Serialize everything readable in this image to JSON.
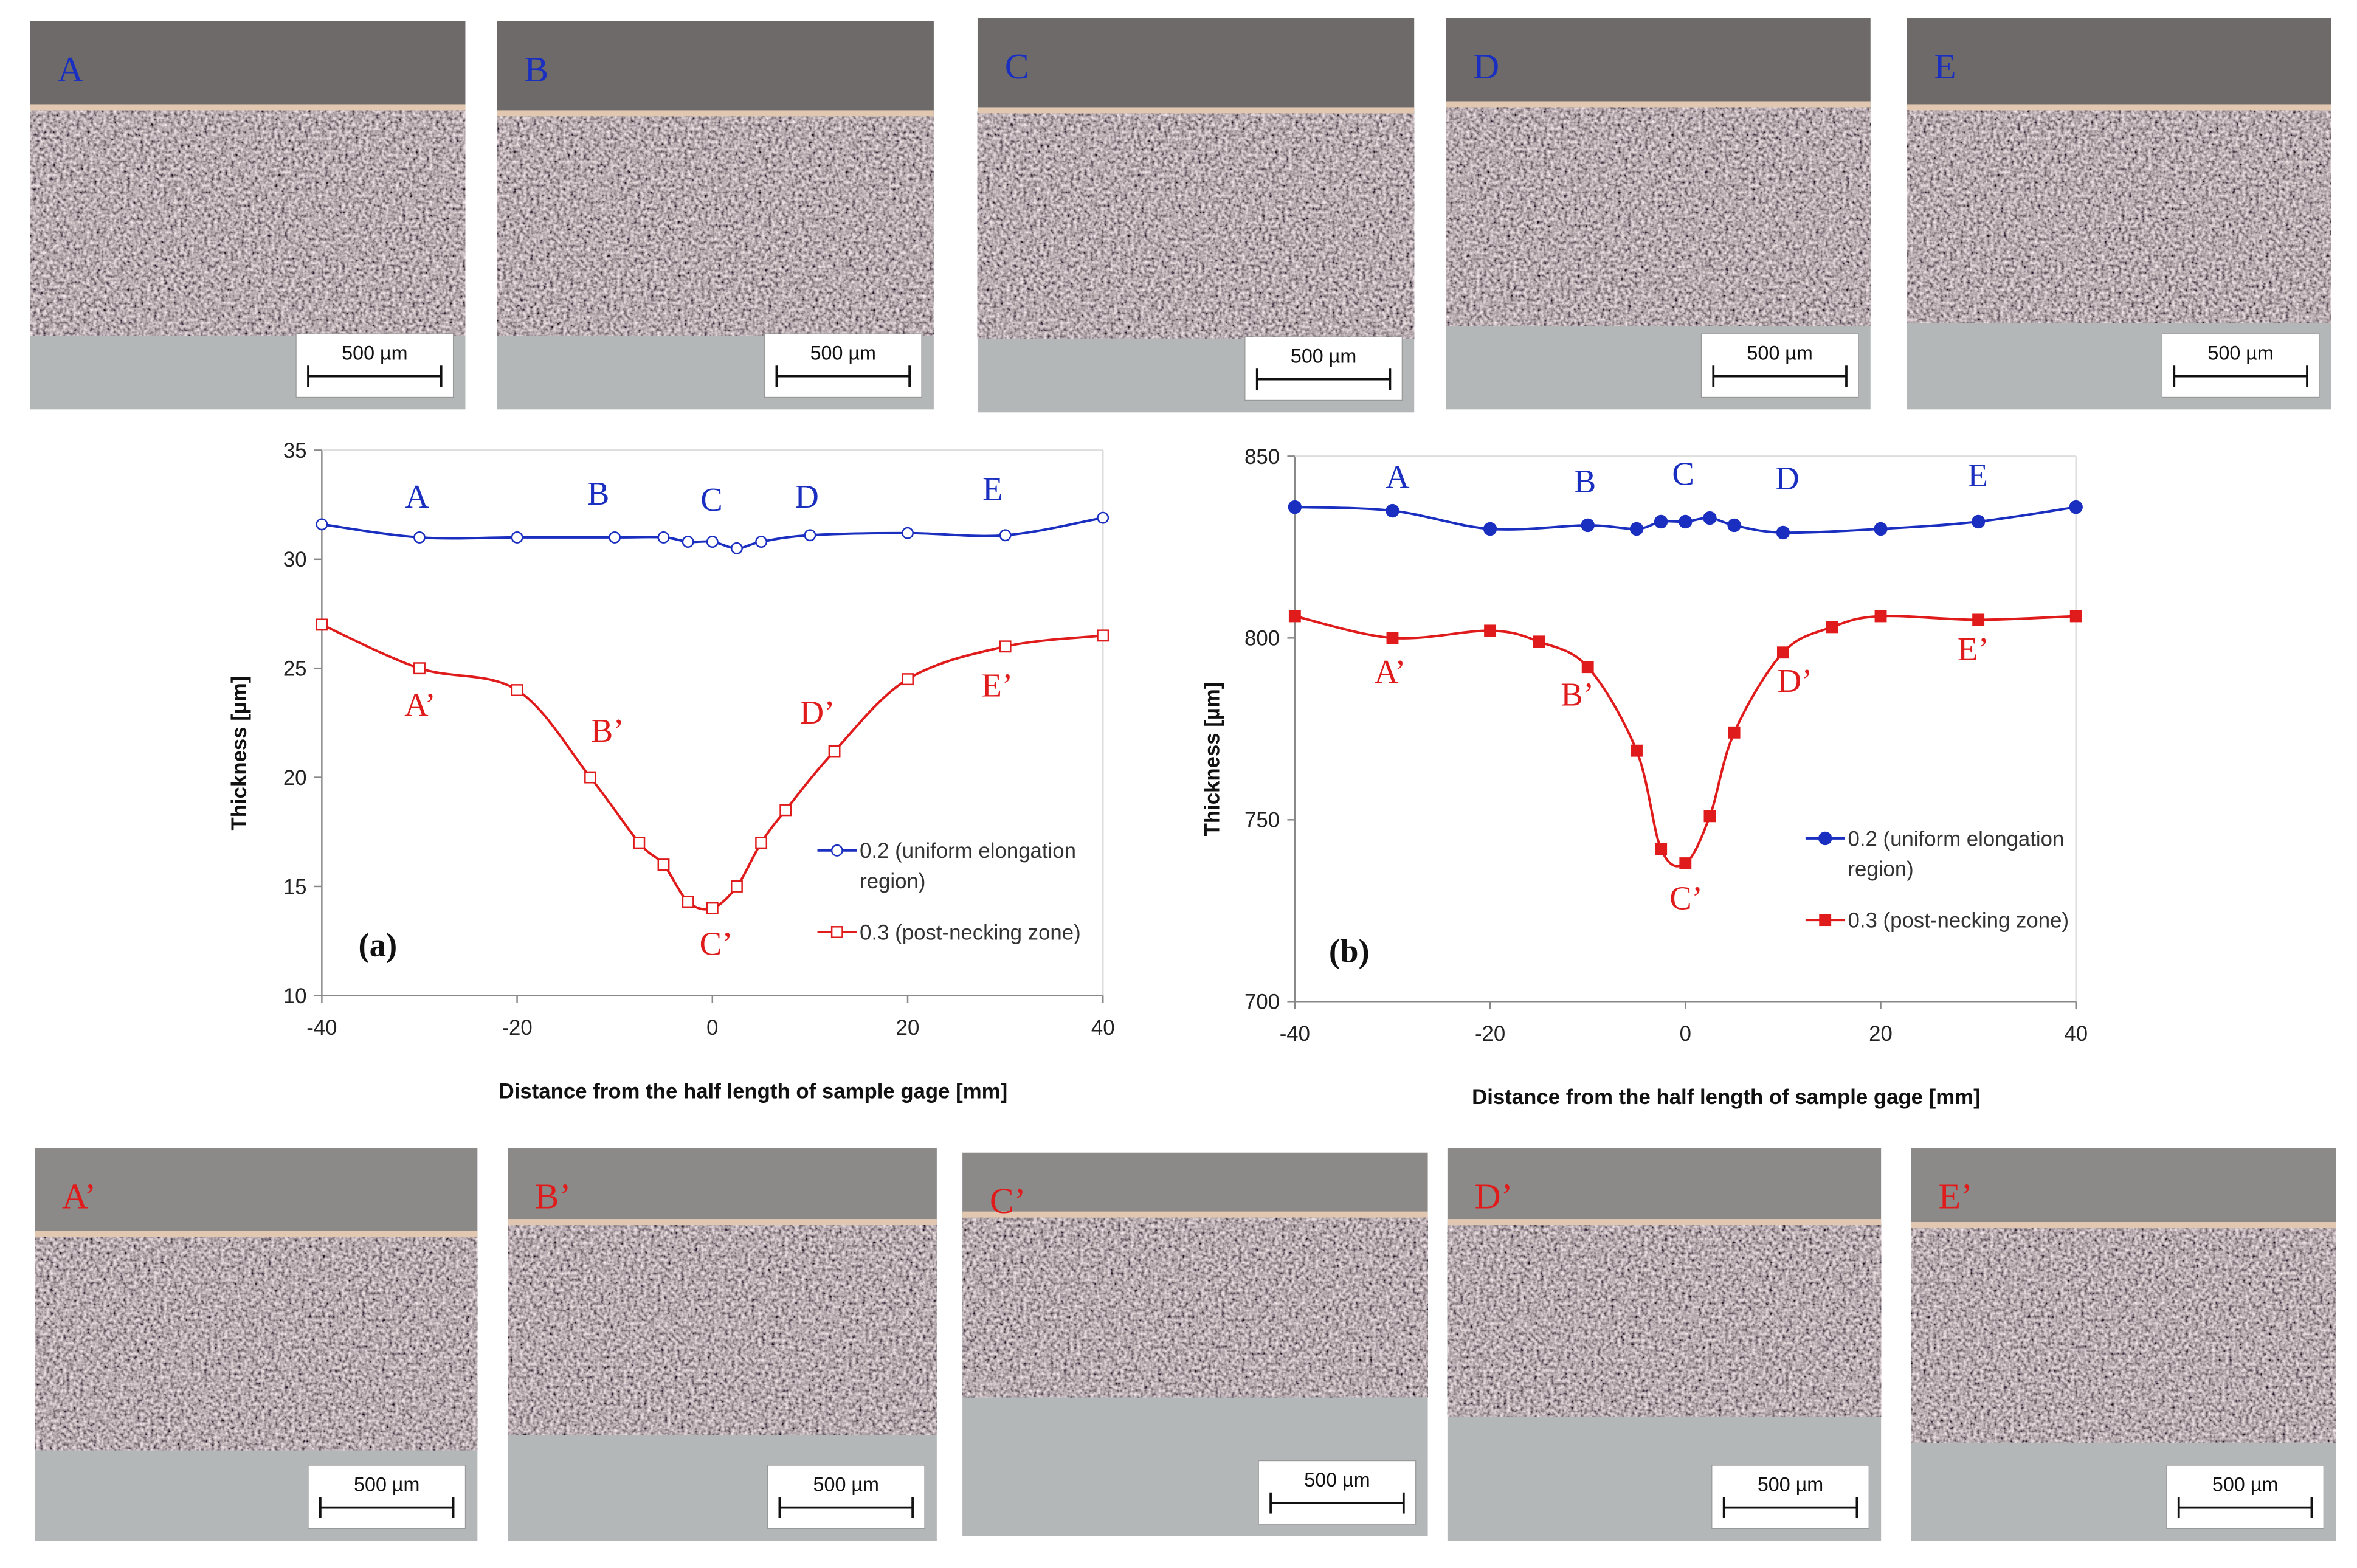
{
  "micrographs": {
    "top": {
      "label_color": "#1a2fc0",
      "panels": [
        {
          "label": "A",
          "scale": "500 µm"
        },
        {
          "label": "B",
          "scale": "500 µm"
        },
        {
          "label": "C",
          "scale": "500 µm"
        },
        {
          "label": "D",
          "scale": "500 µm"
        },
        {
          "label": "E",
          "scale": "500 µm"
        }
      ]
    },
    "bottom": {
      "label_color": "#e01b1b",
      "panels": [
        {
          "label": "A’",
          "scale": "500 µm"
        },
        {
          "label": "B’",
          "scale": "500 µm"
        },
        {
          "label": "C’",
          "scale": "500 µm"
        },
        {
          "label": "D’",
          "scale": "500 µm"
        },
        {
          "label": "E’",
          "scale": "500 µm"
        }
      ]
    }
  },
  "chart_data": [
    {
      "type": "line",
      "panel": "(a)",
      "markers": "open",
      "ylabel": "Thickness [µm]",
      "xlabel": "Distance from the half length of sample gage [mm]",
      "xlim": [
        -40,
        40
      ],
      "xticks": [
        -40,
        -20,
        0,
        20,
        40
      ],
      "ylim": [
        10,
        35
      ],
      "yticks": [
        10,
        15,
        20,
        25,
        30,
        35
      ],
      "series": [
        {
          "name": "0.2 (uniform elongation region)",
          "color": "#1a2fc0",
          "marker": "circle",
          "x": [
            -40,
            -30,
            -20,
            -10,
            -5,
            -2.5,
            0,
            2.5,
            5,
            10,
            20,
            30,
            40
          ],
          "values": [
            31.6,
            31.0,
            31.0,
            31.0,
            31.0,
            30.8,
            30.8,
            30.5,
            30.8,
            31.1,
            31.2,
            31.1,
            31.9
          ],
          "annotations": [
            "A",
            "B",
            "C",
            "D",
            "E"
          ]
        },
        {
          "name": "0.3 (post-necking zone)",
          "color": "#e01b1b",
          "marker": "square",
          "x": [
            -40,
            -30,
            -20,
            -12.5,
            -7.5,
            -5,
            -2.5,
            0,
            2.5,
            5,
            7.5,
            12.5,
            20,
            30,
            40
          ],
          "values": [
            27.0,
            25.0,
            24.0,
            20.0,
            17.0,
            16.0,
            14.3,
            14.0,
            15.0,
            17.0,
            18.5,
            21.2,
            24.5,
            26.0,
            26.5
          ],
          "annotations": [
            "A’",
            "B’",
            "C’",
            "D’",
            "E’"
          ]
        }
      ]
    },
    {
      "type": "line",
      "panel": "(b)",
      "markers": "filled",
      "ylabel": "Thickness [µm]",
      "xlabel": "Distance from the half length of sample gage [mm]",
      "xlim": [
        -40,
        40
      ],
      "xticks": [
        -40,
        -20,
        0,
        20,
        40
      ],
      "ylim": [
        700,
        850
      ],
      "yticks": [
        700,
        750,
        800,
        850
      ],
      "series": [
        {
          "name": "0.2 (uniform elongation region)",
          "color": "#1a2fc0",
          "marker": "circle",
          "x": [
            -40,
            -30,
            -20,
            -10,
            -5,
            -2.5,
            0,
            2.5,
            5,
            10,
            20,
            30,
            40
          ],
          "values": [
            836,
            835,
            830,
            831,
            830,
            832,
            832,
            833,
            831,
            829,
            830,
            832,
            836
          ],
          "annotations": [
            "A",
            "B",
            "C",
            "D",
            "E"
          ]
        },
        {
          "name": "0.3 (post-necking zone)",
          "color": "#e01b1b",
          "marker": "square",
          "x": [
            -40,
            -30,
            -20,
            -15,
            -10,
            -5,
            -2.5,
            0,
            2.5,
            5,
            10,
            15,
            20,
            30,
            40
          ],
          "values": [
            806,
            800,
            802,
            799,
            792,
            769,
            742,
            738,
            751,
            774,
            796,
            803,
            806,
            805,
            806
          ],
          "annotations": [
            "A’",
            "B’",
            "C’",
            "D’",
            "E’"
          ]
        }
      ]
    }
  ]
}
